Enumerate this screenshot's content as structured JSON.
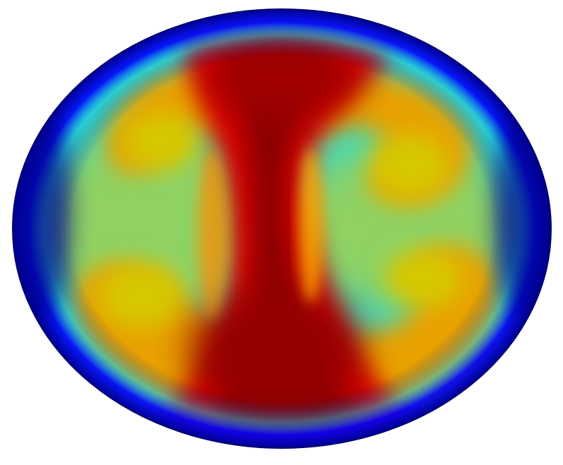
{
  "figure": {
    "kind": "scalar-field-heatmap",
    "shape": "ellipse",
    "colormap": {
      "name": "jet",
      "stops": [
        "#00008b",
        "#0000ff",
        "#00bfff",
        "#30d5c8",
        "#7fd35a",
        "#c8cc00",
        "#ffd500",
        "#ff7f00",
        "#e60000",
        "#8b0000"
      ]
    },
    "background_color": "#ffffff"
  }
}
